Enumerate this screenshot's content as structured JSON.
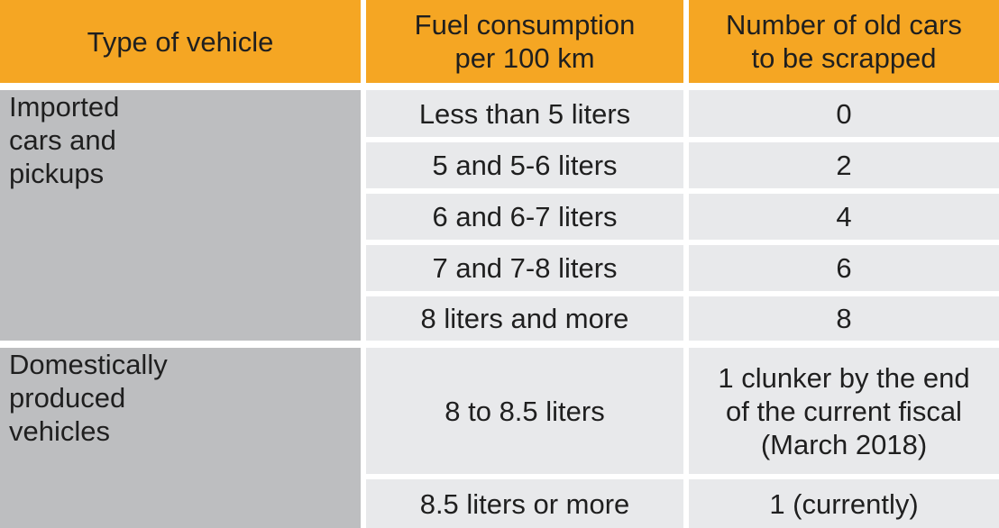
{
  "colors": {
    "header": "#f5a623",
    "category": "#bdbec0",
    "cell": "#e8e9eb"
  },
  "header": {
    "col1": "Type of vehicle",
    "col2_line1": "Fuel consumption",
    "col2_line2": "per 100 km",
    "col3_line1": "Number of old cars",
    "col3_line2": "to be scrapped"
  },
  "group1": {
    "label_line1": "Imported",
    "label_line2": "cars and",
    "label_line3": "pickups",
    "rows": [
      {
        "fuel": "Less than 5 liters",
        "count": "0"
      },
      {
        "fuel": "5 and 5-6 liters",
        "count": "2"
      },
      {
        "fuel": "6 and 6-7 liters",
        "count": "4"
      },
      {
        "fuel": "7 and 7-8 liters",
        "count": "6"
      },
      {
        "fuel": "8 liters and more",
        "count": "8"
      }
    ]
  },
  "group2": {
    "label_line1": "Domestically",
    "label_line2": "produced",
    "label_line3": "vehicles",
    "rows": [
      {
        "fuel": "8 to 8.5 liters",
        "count_line1": "1 clunker by the end",
        "count_line2": "of the current fiscal",
        "count_line3": "(March 2018)"
      },
      {
        "fuel": "8.5 liters or more",
        "count": "1 (currently)"
      }
    ]
  }
}
